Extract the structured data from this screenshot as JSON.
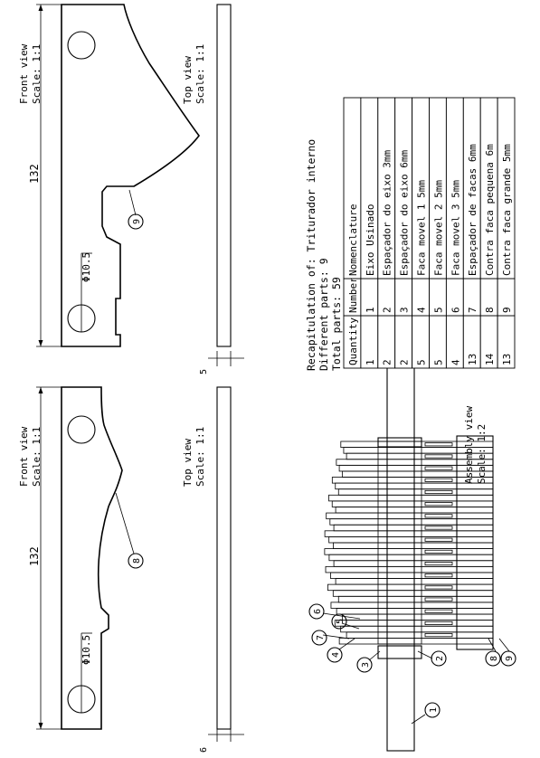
{
  "part_drawings": {
    "part9": {
      "front_view_label": "Front view",
      "front_view_scale": "Scale:  1:1",
      "top_view_label": "Top view",
      "top_view_scale": "Scale:  1:1",
      "length_dim": "132",
      "hole_dim": "Φ10.5",
      "thickness_dim": "5",
      "balloon": "9"
    },
    "part8": {
      "front_view_label": "Front view",
      "front_view_scale": "Scale:  1:1",
      "top_view_label": "Top view",
      "top_view_scale": "Scale:  1:1",
      "length_dim": "132",
      "hole_dim": "Φ10.5",
      "thickness_dim": "6",
      "balloon": "8"
    }
  },
  "recap": {
    "title": "Recapitulation of: Triturador interno",
    "different_parts": "Different parts: 9",
    "total_parts": "Total parts: 59",
    "headers": [
      "Quantity",
      "Number",
      "Nomenclature"
    ],
    "rows": [
      [
        "1",
        "1",
        "Eixo Usinado"
      ],
      [
        "2",
        "2",
        "Espaçador do eixo 3mm"
      ],
      [
        "2",
        "3",
        "Espaçador do eixo 6mm"
      ],
      [
        "5",
        "4",
        "Faca movel 1 5mm"
      ],
      [
        "5",
        "5",
        "Faca movel 2 5mm"
      ],
      [
        "4",
        "6",
        "Faca movel 3 5mm"
      ],
      [
        "13",
        "7",
        "Espaçador de facas 6mm"
      ],
      [
        "14",
        "8",
        "Contra faca pequena 6m"
      ],
      [
        "13",
        "9",
        "Contra faca grande 5mm"
      ]
    ]
  },
  "assembly": {
    "label": "Assembly view",
    "scale": "Scale:  1:2",
    "balloons": [
      "1",
      "2",
      "3",
      "4",
      "5",
      "6",
      "7",
      "8",
      "9"
    ]
  }
}
